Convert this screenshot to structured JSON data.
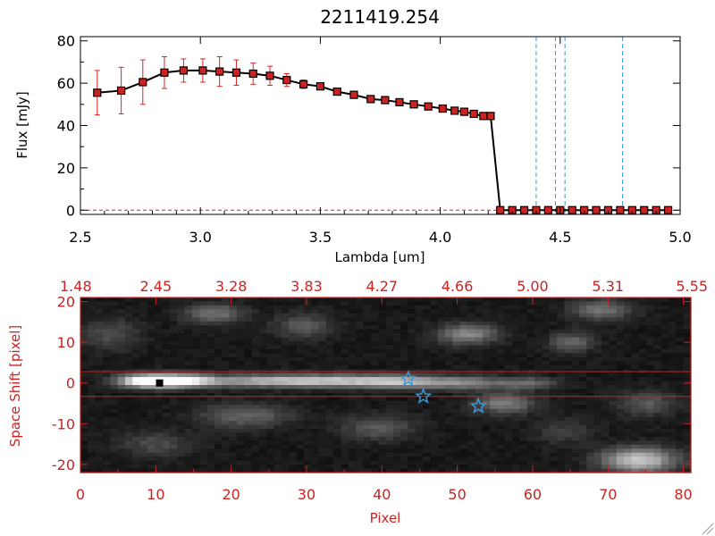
{
  "chart_data": [
    {
      "type": "line",
      "title": "2211419.254",
      "xlabel": "Lambda [um]",
      "ylabel": "Flux [mJy]",
      "xlim": [
        2.5,
        5.0
      ],
      "ylim": [
        -2,
        82
      ],
      "xticks": [
        "2.5",
        "3.0",
        "3.5",
        "4.0",
        "4.5",
        "5.0"
      ],
      "yticks": [
        "0",
        "20",
        "40",
        "60",
        "80"
      ],
      "grid": false,
      "series": [
        {
          "points": [
            [
              2.57,
              55.5,
              10.5
            ],
            [
              2.67,
              56.5,
              11.0
            ],
            [
              2.76,
              60.5,
              10.5
            ],
            [
              2.85,
              65.0,
              7.5
            ],
            [
              2.93,
              66.0,
              5.5
            ],
            [
              3.01,
              66.0,
              5.5
            ],
            [
              3.08,
              65.5,
              7.0
            ],
            [
              3.15,
              65.0,
              6.0
            ],
            [
              3.22,
              64.5,
              5.0
            ],
            [
              3.29,
              63.5,
              4.5
            ],
            [
              3.36,
              61.5,
              3.0
            ],
            [
              3.43,
              59.5,
              2.0
            ],
            [
              3.5,
              58.5,
              1.5
            ],
            [
              3.57,
              56.0,
              1.5
            ],
            [
              3.64,
              54.5,
              1.0
            ],
            [
              3.71,
              52.5,
              1.0
            ],
            [
              3.77,
              52.0,
              1.0
            ],
            [
              3.83,
              51.0,
              1.0
            ],
            [
              3.89,
              50.0,
              1.0
            ],
            [
              3.95,
              49.0,
              1.0
            ],
            [
              4.01,
              48.0,
              1.0
            ],
            [
              4.06,
              47.0,
              1.0
            ],
            [
              4.1,
              46.5,
              1.0
            ],
            [
              4.14,
              45.5,
              1.0
            ],
            [
              4.18,
              44.5,
              1.0
            ],
            [
              4.21,
              44.5,
              1.0
            ],
            [
              4.25,
              0,
              0
            ],
            [
              4.3,
              0,
              0
            ],
            [
              4.35,
              0,
              0
            ],
            [
              4.4,
              0,
              0
            ],
            [
              4.45,
              0,
              0
            ],
            [
              4.5,
              0,
              0
            ],
            [
              4.55,
              0,
              0
            ],
            [
              4.6,
              0,
              0
            ],
            [
              4.65,
              0,
              0
            ],
            [
              4.7,
              0,
              0
            ],
            [
              4.75,
              0,
              0
            ],
            [
              4.8,
              0,
              0
            ],
            [
              4.85,
              0,
              0
            ],
            [
              4.9,
              0,
              0
            ],
            [
              4.95,
              0,
              0
            ]
          ],
          "color": "#000000",
          "marker_color": "#cc2222",
          "errorbar_color": "#dd2222"
        }
      ],
      "vlines": [
        4.4,
        4.48,
        4.52,
        4.76
      ],
      "vline_color": "#3a9ad9",
      "hline_y": 0,
      "hline_color": "#dd2222"
    },
    {
      "type": "heatmap",
      "xlabel": "Pixel",
      "ylabel": "Space Shift [pixel]",
      "xlim": [
        0,
        81
      ],
      "ylim": [
        -22,
        21
      ],
      "xticks": [
        "0",
        "10",
        "20",
        "30",
        "40",
        "50",
        "60",
        "70",
        "80"
      ],
      "yticks": [
        "-20",
        "-10",
        "0",
        "10",
        "20"
      ],
      "top_ticks": [
        "1.48",
        "2.45",
        "3.28",
        "3.83",
        "4.27",
        "4.66",
        "5.00",
        "5.31",
        "5.55"
      ],
      "axis_color": "#cc2222",
      "hlines": [
        2.8,
        -3.3
      ],
      "trace_marker": [
        10.5,
        0
      ],
      "stars": [
        [
          43.5,
          1
        ],
        [
          45.5,
          -3.3
        ],
        [
          52.8,
          -5.7
        ]
      ],
      "star_color": "#3a9ad9",
      "colormap": "gray"
    }
  ]
}
